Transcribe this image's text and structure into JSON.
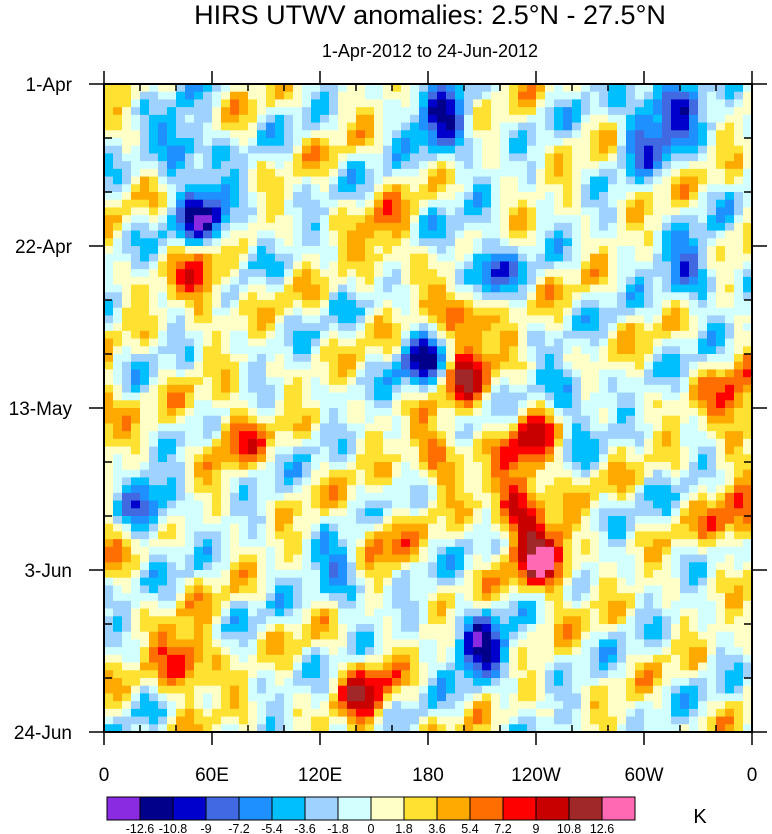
{
  "chart_data": {
    "type": "heatmap",
    "title": "HIRS UTWV anomalies: 2.5°N - 27.5°N",
    "subtitle": "1-Apr-2012 to 24-Jun-2012",
    "x_ticks": [
      "0",
      "60E",
      "120E",
      "180",
      "120W",
      "60W",
      "0"
    ],
    "x_range_deg_east": [
      0,
      360
    ],
    "y_ticks": [
      "1-Apr",
      "22-Apr",
      "13-May",
      "3-Jun",
      "24-Jun"
    ],
    "y_range_days": [
      0,
      84
    ],
    "colorbar": {
      "levels": [
        "-12.6",
        "-10.8",
        "-9",
        "-7.2",
        "-5.4",
        "-3.6",
        "-1.8",
        "0",
        "1.8",
        "3.6",
        "5.4",
        "7.2",
        "9",
        "10.8",
        "12.6"
      ],
      "colors": [
        "#8a2be2",
        "#00008b",
        "#0000cd",
        "#4169e1",
        "#1e90ff",
        "#00bfff",
        "#a0d2ff",
        "#d2ffff",
        "#ffffc8",
        "#ffe132",
        "#ffaa00",
        "#ff6e00",
        "#ff0000",
        "#c80000",
        "#a02828",
        "#ff69b4"
      ],
      "unit": "K"
    },
    "anomaly_features": [
      {
        "lon": 58,
        "day": 18,
        "value": -11
      },
      {
        "lon": 45,
        "day": 8,
        "value": -7
      },
      {
        "lon": 318,
        "day": 3,
        "value": -8
      },
      {
        "lon": 300,
        "day": 6,
        "value": -7
      },
      {
        "lon": 188,
        "day": 5,
        "value": -10
      },
      {
        "lon": 210,
        "day": 24,
        "value": -9
      },
      {
        "lon": 325,
        "day": 24,
        "value": -7
      },
      {
        "lon": 25,
        "day": 55,
        "value": -7
      },
      {
        "lon": 180,
        "day": 36,
        "value": -9
      },
      {
        "lon": 210,
        "day": 73,
        "value": -10
      },
      {
        "lon": 135,
        "day": 63,
        "value": -7
      },
      {
        "lon": 260,
        "day": 41,
        "value": -5
      },
      {
        "lon": 155,
        "day": 20,
        "value": 5
      },
      {
        "lon": 200,
        "day": 30,
        "value": 9
      },
      {
        "lon": 200,
        "day": 38,
        "value": 8
      },
      {
        "lon": 55,
        "day": 25,
        "value": 8
      },
      {
        "lon": 72,
        "day": 45,
        "value": 6
      },
      {
        "lon": 230,
        "day": 55,
        "value": 9
      },
      {
        "lon": 245,
        "day": 62,
        "value": 11
      },
      {
        "lon": 238,
        "day": 47,
        "value": 8
      },
      {
        "lon": 45,
        "day": 75,
        "value": 9
      },
      {
        "lon": 145,
        "day": 79,
        "value": 8
      },
      {
        "lon": 352,
        "day": 42,
        "value": 8
      },
      {
        "lon": 352,
        "day": 57,
        "value": 7
      },
      {
        "lon": 185,
        "day": 48,
        "value": 6
      },
      {
        "lon": 150,
        "day": 60,
        "value": 6
      }
    ]
  }
}
